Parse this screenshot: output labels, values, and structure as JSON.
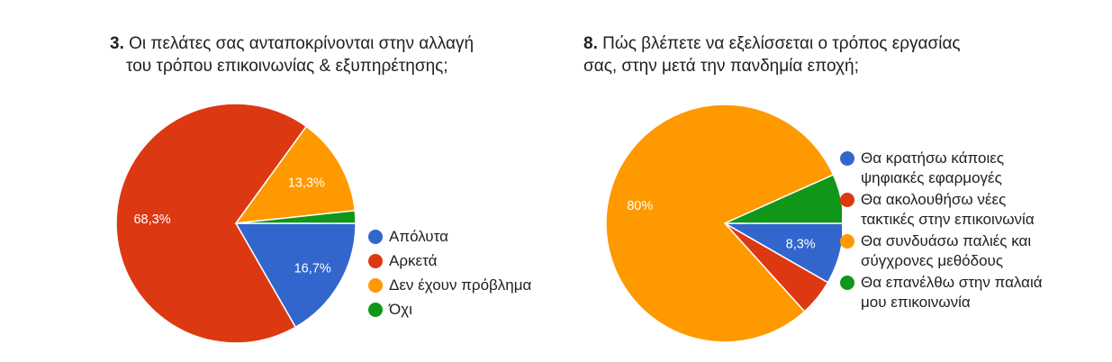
{
  "colors": {
    "blue": "#3366CC",
    "red": "#DC3912",
    "orange": "#FF9900",
    "green": "#109618"
  },
  "chart_data": [
    {
      "type": "pie",
      "title_number": "3.",
      "title_lines": [
        "Οι πελάτες σας ανταποκρίνονται στην αλλαγή",
        "του τρόπου επικοινωνίας & εξυπηρέτησης;"
      ],
      "labels": [
        "Απόλυτα",
        "Αρκετά",
        "Δεν έχουν πρόβλημα",
        "Όχι"
      ],
      "values": [
        16.7,
        68.3,
        13.3,
        1.7
      ],
      "colors": [
        "#3366CC",
        "#DC3912",
        "#FF9900",
        "#109618"
      ],
      "slice_labels": [
        "16,7%",
        "68,3%",
        "13,3%",
        ""
      ],
      "legend_position": "right"
    },
    {
      "type": "pie",
      "title_number": "8.",
      "title_lines": [
        "Πώς βλέπετε να εξελίσσεται ο τρόπος εργασίας",
        "σας, στην μετά την πανδημία εποχή;"
      ],
      "labels": [
        "Θα κρατήσω κάποιες ψηφιακές εφαρμογές",
        "Θα ακολουθήσω νέες τακτικές στην επικοινωνία",
        "Θα συνδυάσω παλιές και σύγχρονες μεθόδους",
        "Θα επανέλθω στην παλαιά μου επικοινωνία"
      ],
      "legend_lines": [
        [
          "Θα κρατήσω κάποιες",
          "ψηφιακές εφαρμογές"
        ],
        [
          "Θα ακολουθήσω νέες",
          "τακτικές στην επικοινωνία"
        ],
        [
          "Θα συνδυάσω παλιές και",
          "σύγχρονες μεθόδους"
        ],
        [
          "Θα επανέλθω στην παλαιά",
          "μου επικοινωνία"
        ]
      ],
      "values": [
        8.3,
        5.0,
        80.0,
        6.7
      ],
      "colors": [
        "#3366CC",
        "#DC3912",
        "#FF9900",
        "#109618"
      ],
      "slice_labels": [
        "8,3%",
        "",
        "80%",
        ""
      ],
      "legend_position": "right"
    }
  ]
}
